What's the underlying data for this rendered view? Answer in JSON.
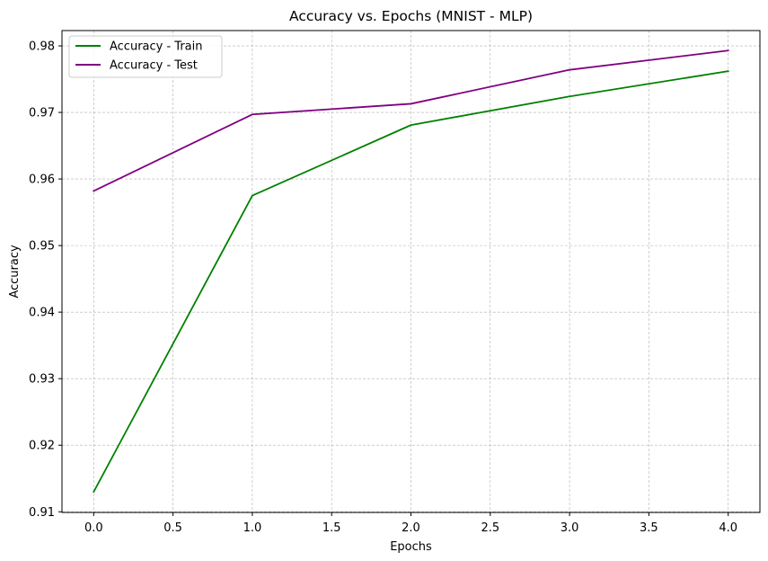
{
  "chart_data": {
    "type": "line",
    "title": "Accuracy vs. Epochs (MNIST - MLP)",
    "xlabel": "Epochs",
    "ylabel": "Accuracy",
    "x": [
      0,
      1,
      2,
      3,
      4
    ],
    "xlim": [
      -0.2,
      4.2
    ],
    "ylim": [
      0.9099,
      0.9823
    ],
    "xticks": [
      0.0,
      0.5,
      1.0,
      1.5,
      2.0,
      2.5,
      3.0,
      3.5,
      4.0
    ],
    "xtick_labels": [
      "0.0",
      "0.5",
      "1.0",
      "1.5",
      "2.0",
      "2.5",
      "3.0",
      "3.5",
      "4.0"
    ],
    "yticks": [
      0.91,
      0.92,
      0.93,
      0.94,
      0.95,
      0.96,
      0.97,
      0.98
    ],
    "ytick_labels": [
      "0.91",
      "0.92",
      "0.93",
      "0.94",
      "0.95",
      "0.96",
      "0.97",
      "0.98"
    ],
    "grid": true,
    "legend_position": "top-left",
    "series": [
      {
        "name": "Accuracy - Train",
        "color": "#008000",
        "values": [
          0.913,
          0.9575,
          0.9681,
          0.9724,
          0.9762
        ]
      },
      {
        "name": "Accuracy - Test",
        "color": "#800080",
        "values": [
          0.9582,
          0.9697,
          0.9713,
          0.9764,
          0.9793
        ]
      }
    ]
  }
}
